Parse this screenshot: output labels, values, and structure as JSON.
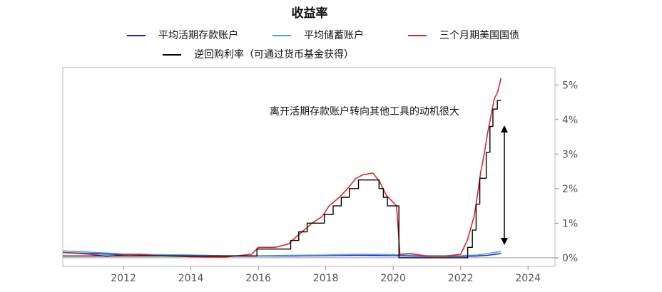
{
  "chart_data": {
    "type": "line",
    "title": "收益率",
    "xlabel": "",
    "ylabel": "",
    "xlim": [
      2010.2,
      2024.8
    ],
    "ylim": [
      -0.25,
      5.5
    ],
    "x_ticks": [
      "2012",
      "2014",
      "2016",
      "2018",
      "2020",
      "2022",
      "2024"
    ],
    "y_ticks": [
      "0%",
      "1%",
      "2%",
      "3%",
      "4%",
      "5%"
    ],
    "y_axis_side": "right",
    "grid": false,
    "legend_position": "top",
    "annotation": "离开活期存款账户转向其他工具的动机很大",
    "series": [
      {
        "name": "平均活期存款账户",
        "color": "#2222cc",
        "step": false,
        "points": [
          [
            2010.2,
            0.15
          ],
          [
            2011,
            0.12
          ],
          [
            2012,
            0.09
          ],
          [
            2013,
            0.07
          ],
          [
            2014,
            0.06
          ],
          [
            2015,
            0.05
          ],
          [
            2016,
            0.05
          ],
          [
            2017,
            0.05
          ],
          [
            2018,
            0.06
          ],
          [
            2019,
            0.07
          ],
          [
            2020,
            0.06
          ],
          [
            2021,
            0.04
          ],
          [
            2022,
            0.04
          ],
          [
            2022.5,
            0.05
          ],
          [
            2022.8,
            0.07
          ],
          [
            2023.2,
            0.12
          ]
        ]
      },
      {
        "name": "平均储蓄账户",
        "color": "#4fa3d9",
        "step": false,
        "points": [
          [
            2010.2,
            0.2
          ],
          [
            2011,
            0.16
          ],
          [
            2012,
            0.11
          ],
          [
            2013,
            0.09
          ],
          [
            2014,
            0.08
          ],
          [
            2015,
            0.06
          ],
          [
            2016,
            0.06
          ],
          [
            2017,
            0.07
          ],
          [
            2018,
            0.08
          ],
          [
            2019,
            0.1
          ],
          [
            2020,
            0.09
          ],
          [
            2021,
            0.06
          ],
          [
            2022,
            0.06
          ],
          [
            2022.5,
            0.08
          ],
          [
            2022.8,
            0.12
          ],
          [
            2023.2,
            0.18
          ]
        ]
      },
      {
        "name": "三个月期美国国债",
        "color": "#d9252f",
        "step": false,
        "points": [
          [
            2010.2,
            0.15
          ],
          [
            2011,
            0.1
          ],
          [
            2011.5,
            0.04
          ],
          [
            2012,
            0.08
          ],
          [
            2012.5,
            0.1
          ],
          [
            2013,
            0.06
          ],
          [
            2014,
            0.03
          ],
          [
            2015,
            0.02
          ],
          [
            2015.8,
            0.1
          ],
          [
            2016,
            0.3
          ],
          [
            2016.5,
            0.3
          ],
          [
            2016.9,
            0.4
          ],
          [
            2017,
            0.5
          ],
          [
            2017.3,
            0.75
          ],
          [
            2017.6,
            1.0
          ],
          [
            2017.9,
            1.2
          ],
          [
            2018.1,
            1.5
          ],
          [
            2018.4,
            1.75
          ],
          [
            2018.6,
            1.95
          ],
          [
            2018.9,
            2.3
          ],
          [
            2019.1,
            2.4
          ],
          [
            2019.4,
            2.45
          ],
          [
            2019.6,
            2.2
          ],
          [
            2019.8,
            1.8
          ],
          [
            2020,
            1.6
          ],
          [
            2020.1,
            1.5
          ],
          [
            2020.2,
            0.1
          ],
          [
            2020.5,
            0.12
          ],
          [
            2021,
            0.05
          ],
          [
            2021.5,
            0.04
          ],
          [
            2022,
            0.1
          ],
          [
            2022.2,
            0.5
          ],
          [
            2022.4,
            1.2
          ],
          [
            2022.5,
            1.8
          ],
          [
            2022.6,
            2.5
          ],
          [
            2022.7,
            3.0
          ],
          [
            2022.8,
            3.6
          ],
          [
            2022.9,
            4.1
          ],
          [
            2023.0,
            4.6
          ],
          [
            2023.1,
            4.8
          ],
          [
            2023.2,
            5.2
          ]
        ]
      },
      {
        "name": "逆回购利率（可通过货币基金获得）",
        "color": "#000000",
        "step": true,
        "points": [
          [
            2010.2,
            0.05
          ],
          [
            2015.9,
            0.05
          ],
          [
            2015.96,
            0.25
          ],
          [
            2016.95,
            0.25
          ],
          [
            2016.96,
            0.5
          ],
          [
            2017.2,
            0.75
          ],
          [
            2017.45,
            1.0
          ],
          [
            2017.96,
            1.25
          ],
          [
            2018.22,
            1.5
          ],
          [
            2018.46,
            1.75
          ],
          [
            2018.7,
            2.0
          ],
          [
            2018.97,
            2.25
          ],
          [
            2019.58,
            2.0
          ],
          [
            2019.71,
            1.75
          ],
          [
            2019.83,
            1.5
          ],
          [
            2020.17,
            0.0
          ],
          [
            2022.2,
            0.0
          ],
          [
            2022.21,
            0.3
          ],
          [
            2022.35,
            0.8
          ],
          [
            2022.46,
            1.55
          ],
          [
            2022.57,
            2.3
          ],
          [
            2022.76,
            3.05
          ],
          [
            2022.87,
            3.8
          ],
          [
            2022.96,
            4.3
          ],
          [
            2023.09,
            4.55
          ],
          [
            2023.2,
            4.55
          ]
        ]
      }
    ]
  }
}
